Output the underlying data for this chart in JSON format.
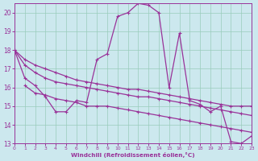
{
  "xlabel": "Windchill (Refroidissement éolien,°C)",
  "bg_color": "#cce8ee",
  "line_color": "#993399",
  "grid_color": "#99ccbb",
  "xlim": [
    0,
    23
  ],
  "ylim": [
    13,
    20.5
  ],
  "yticks": [
    13,
    14,
    15,
    16,
    17,
    18,
    19,
    20
  ],
  "xticks": [
    0,
    1,
    2,
    3,
    4,
    5,
    6,
    7,
    8,
    9,
    10,
    11,
    12,
    13,
    14,
    15,
    16,
    17,
    18,
    19,
    20,
    21,
    22,
    23
  ],
  "series1_x": [
    0,
    1,
    2,
    3,
    4,
    5,
    6,
    7,
    8,
    9,
    10,
    11,
    12,
    13,
    14,
    15,
    16,
    17,
    18,
    19,
    20,
    21,
    22,
    23
  ],
  "series1_y": [
    18,
    16.5,
    16.1,
    15.5,
    14.7,
    14.7,
    15.3,
    15.2,
    17.5,
    17.8,
    19.8,
    20.0,
    20.5,
    20.4,
    20.0,
    16.0,
    18.9,
    15.3,
    15.1,
    14.7,
    15.0,
    13.1,
    13.0,
    13.4
  ],
  "series2_x": [
    0,
    1,
    2,
    3,
    4,
    5,
    6,
    7,
    8,
    9,
    10,
    11,
    12,
    13,
    14,
    15,
    16,
    17,
    18,
    19,
    20,
    21,
    22,
    23
  ],
  "series2_y": [
    18,
    17.2,
    16.8,
    16.5,
    16.3,
    16.2,
    16.1,
    16.0,
    15.9,
    15.8,
    15.7,
    15.6,
    15.5,
    15.5,
    15.4,
    15.3,
    15.2,
    15.1,
    15.0,
    14.9,
    14.8,
    14.7,
    14.6,
    14.5
  ],
  "series3_x": [
    0,
    1,
    2,
    3,
    4,
    5,
    6,
    7,
    8,
    9,
    10,
    11,
    12,
    13,
    14,
    15,
    16,
    17,
    18,
    19,
    20,
    21,
    22,
    23
  ],
  "series3_y": [
    18,
    17.5,
    17.2,
    17.0,
    16.8,
    16.6,
    16.4,
    16.3,
    16.2,
    16.1,
    16.0,
    15.9,
    15.9,
    15.8,
    15.7,
    15.6,
    15.5,
    15.4,
    15.3,
    15.2,
    15.1,
    15.0,
    15.0,
    15.0
  ],
  "series4_x": [
    1,
    2,
    3,
    4,
    5,
    6,
    7,
    8,
    9,
    10,
    11,
    12,
    13,
    14,
    15,
    16,
    17,
    18,
    19,
    20,
    21,
    22,
    23
  ],
  "series4_y": [
    16.1,
    15.7,
    15.6,
    15.4,
    15.3,
    15.2,
    15.0,
    15.0,
    15.0,
    14.9,
    14.8,
    14.7,
    14.6,
    14.5,
    14.4,
    14.3,
    14.2,
    14.1,
    14.0,
    13.9,
    13.8,
    13.7,
    13.6
  ]
}
